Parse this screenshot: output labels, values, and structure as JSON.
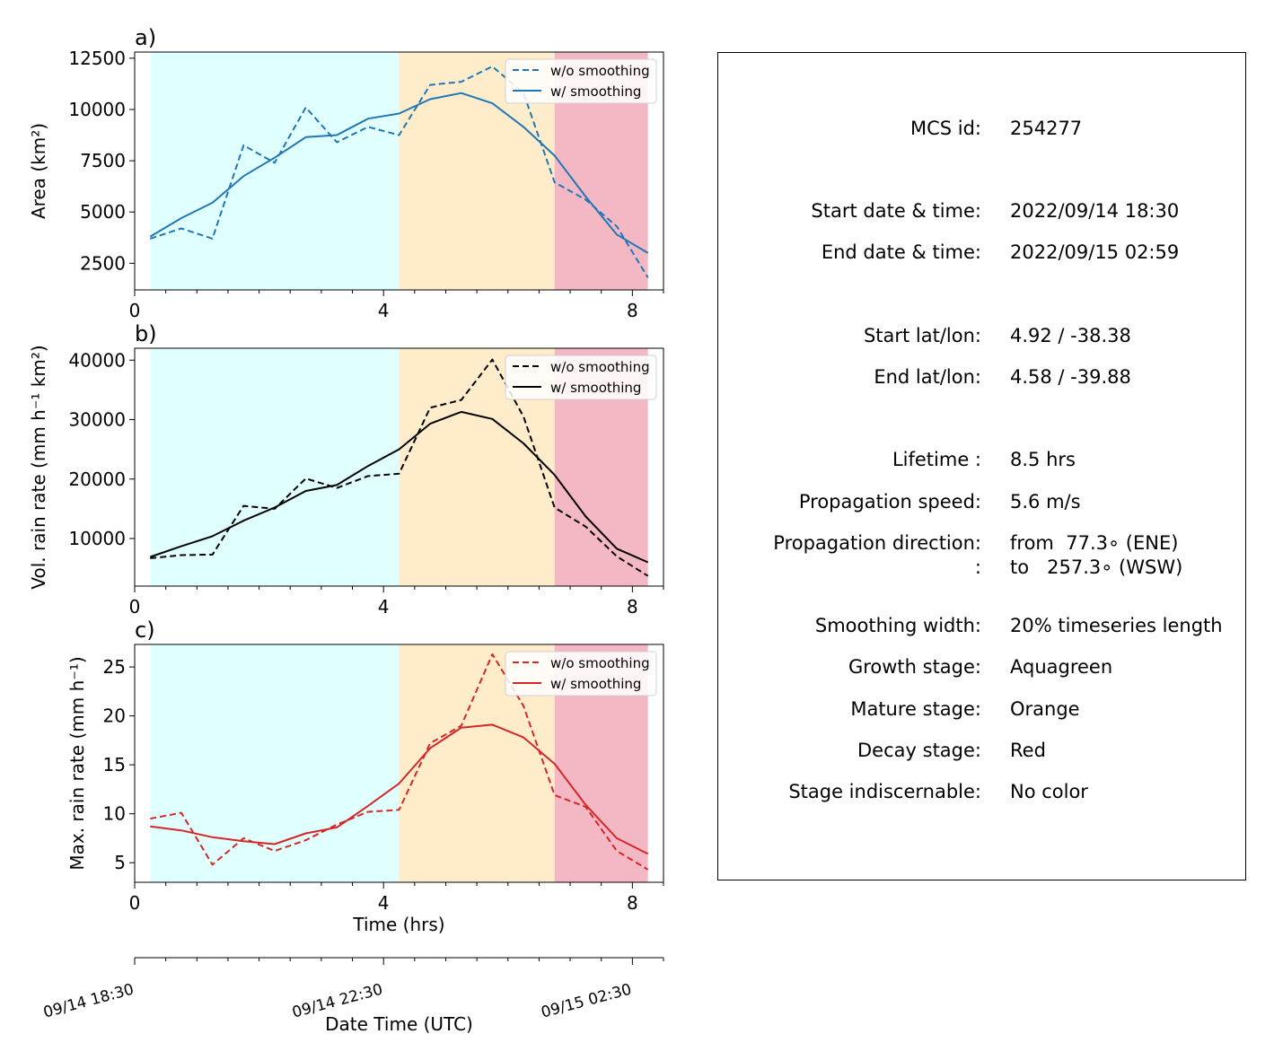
{
  "colors": {
    "growth": "#e0ffff",
    "mature": "#ffecca",
    "decay": "#f4b8c5",
    "area": "#1f77b4",
    "volrain": "#000000",
    "maxrain": "#d62728"
  },
  "stages": {
    "growth": [
      0.25,
      4.25
    ],
    "mature": [
      4.25,
      6.75
    ],
    "decay": [
      6.75,
      8.25
    ]
  },
  "panels": [
    {
      "key": "area",
      "label": "a)",
      "ylabel": "Area  (km²)",
      "color": "#1f77b4",
      "ylim": [
        1200,
        12800
      ],
      "yticks": [
        2500,
        5000,
        7500,
        10000,
        12500
      ],
      "legend": [
        "w/o smoothing",
        "w/ smoothing"
      ]
    },
    {
      "key": "volrain",
      "label": "b)",
      "ylabel": "Vol. rain rate (mm h⁻¹ km²)",
      "color": "#000000",
      "ylim": [
        2000,
        42000
      ],
      "yticks": [
        10000,
        20000,
        30000,
        40000
      ],
      "legend": [
        "w/o smoothing",
        "w/ smoothing"
      ]
    },
    {
      "key": "maxrain",
      "label": "c)",
      "ylabel": "Max. rain rate  (mm h⁻¹)",
      "color": "#d62728",
      "ylim": [
        3,
        27.3
      ],
      "yticks": [
        5,
        10,
        15,
        20,
        25
      ],
      "legend": [
        "w/o smoothing",
        "w/ smoothing"
      ]
    }
  ],
  "xaxis": {
    "xlim": [
      0,
      8.5
    ],
    "major_ticks": [
      0,
      4,
      8
    ],
    "xlabel": "Time (hrs)",
    "datetime_label": "Date Time (UTC)",
    "datetime_ticks": [
      "09/14 18:30",
      "09/14 22:30",
      "09/15 02:30"
    ]
  },
  "chart_data": [
    {
      "type": "line",
      "x": [
        0.25,
        0.75,
        1.25,
        1.75,
        2.25,
        2.75,
        3.25,
        3.75,
        4.25,
        4.75,
        5.25,
        5.75,
        6.25,
        6.75,
        7.25,
        7.75,
        8.25
      ],
      "series": [
        {
          "name": "w/o smoothing",
          "values": [
            3700,
            4200,
            3700,
            8250,
            7400,
            10100,
            8400,
            9150,
            8750,
            11200,
            11350,
            12100,
            10800,
            6450,
            5600,
            4300,
            1800
          ]
        },
        {
          "name": "w/ smoothing",
          "values": [
            3800,
            4700,
            5450,
            6750,
            7650,
            8650,
            8750,
            9550,
            9800,
            10500,
            10800,
            10300,
            9150,
            7750,
            5750,
            3900,
            3000
          ]
        }
      ],
      "xlabel": "",
      "ylabel": "Area  (km²)",
      "ylim": [
        1200,
        12800
      ]
    },
    {
      "type": "line",
      "x": [
        0.25,
        0.75,
        1.25,
        1.75,
        2.25,
        2.75,
        3.25,
        3.75,
        4.25,
        4.75,
        5.25,
        5.75,
        6.25,
        6.75,
        7.25,
        7.75,
        8.25
      ],
      "series": [
        {
          "name": "w/o smoothing",
          "values": [
            6700,
            7200,
            7300,
            15500,
            15000,
            20100,
            18500,
            20500,
            20900,
            32000,
            33300,
            40100,
            30500,
            15200,
            12000,
            7000,
            3700
          ]
        },
        {
          "name": "w/ smoothing",
          "values": [
            6900,
            8700,
            10400,
            13000,
            15200,
            18000,
            19000,
            22200,
            25000,
            29300,
            31300,
            30100,
            26000,
            20700,
            13700,
            8300,
            6000
          ]
        }
      ],
      "xlabel": "",
      "ylabel": "Vol. rain rate (mm h⁻¹ km²)",
      "ylim": [
        2000,
        42000
      ]
    },
    {
      "type": "line",
      "x": [
        0.25,
        0.75,
        1.25,
        1.75,
        2.25,
        2.75,
        3.25,
        3.75,
        4.25,
        4.75,
        5.25,
        5.75,
        6.25,
        6.75,
        7.25,
        7.75,
        8.25
      ],
      "series": [
        {
          "name": "w/o smoothing",
          "values": [
            9.5,
            10.1,
            4.8,
            7.5,
            6.2,
            7.3,
            8.9,
            10.2,
            10.4,
            17.2,
            19.0,
            26.3,
            21.0,
            11.9,
            10.7,
            6.2,
            4.3
          ]
        },
        {
          "name": "w/ smoothing",
          "values": [
            8.7,
            8.3,
            7.6,
            7.2,
            6.9,
            8.0,
            8.6,
            10.8,
            13.1,
            16.7,
            18.8,
            19.1,
            17.8,
            15.1,
            10.9,
            7.5,
            5.9
          ]
        }
      ],
      "xlabel": "Time (hrs)",
      "ylabel": "Max. rain rate  (mm h⁻¹)",
      "ylim": [
        3,
        27.3
      ]
    }
  ],
  "info": {
    "mcs_id_label": "MCS id:",
    "mcs_id": "254277",
    "start_dt_label": "Start date & time:",
    "start_dt": "2022/09/14 18:30",
    "end_dt_label": "End date & time:",
    "end_dt": "2022/09/15 02:59",
    "start_ll_label": "Start lat/lon:",
    "start_ll": "4.92 / -38.38",
    "end_ll_label": "End lat/lon:",
    "end_ll": "4.58 / -39.88",
    "lifetime_label": "Lifetime :",
    "lifetime": "8.5 hrs",
    "speed_label": "Propagation speed:",
    "speed": "5.6 m/s",
    "direction_label": "Propagation direction:",
    "direction_from": "from  77.3∘ (ENE)",
    "direction_cont_label": ":",
    "direction_to": "to   257.3∘ (WSW)",
    "smoothing_label": "Smoothing width:",
    "smoothing": "20% timeseries length",
    "growth_label": "Growth stage:",
    "growth": "Aquagreen",
    "mature_label": "Mature stage:",
    "mature": "Orange",
    "decay_label": "Decay stage:",
    "decay": "Red",
    "indisc_label": "Stage indiscernable:",
    "indisc": "No color"
  }
}
